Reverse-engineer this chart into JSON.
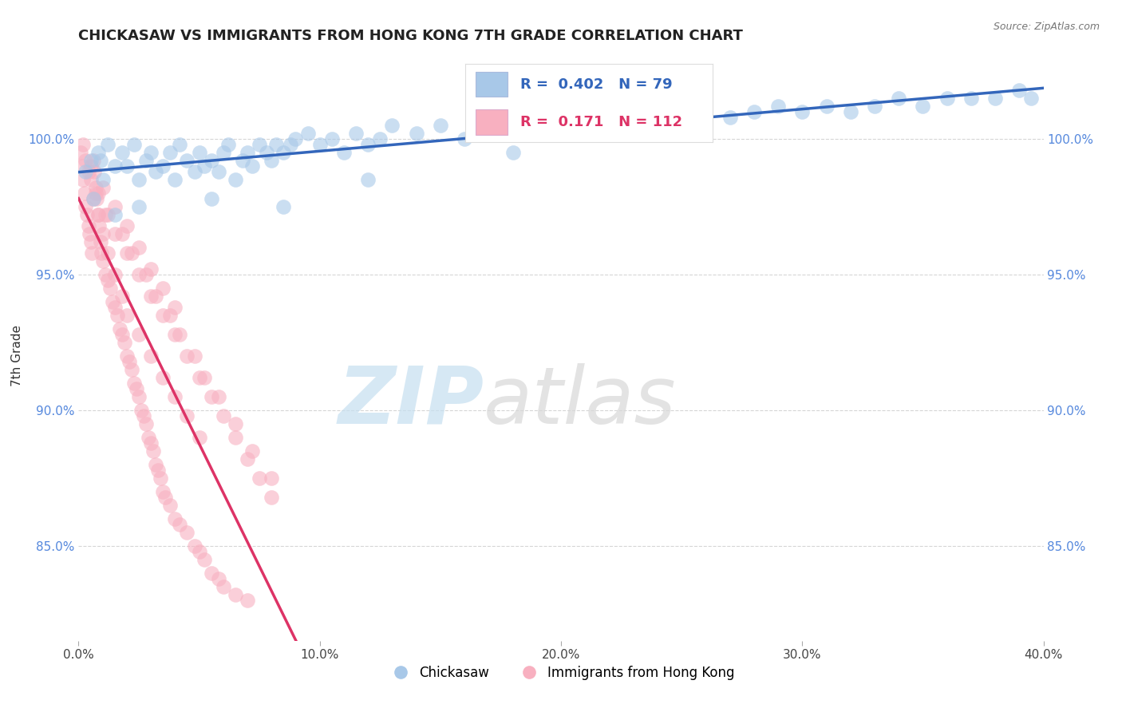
{
  "title": "CHICKASAW VS IMMIGRANTS FROM HONG KONG 7TH GRADE CORRELATION CHART",
  "source_text": "Source: ZipAtlas.com",
  "ylabel": "7th Grade",
  "xlim": [
    0.0,
    40.0
  ],
  "ylim": [
    81.5,
    102.5
  ],
  "yticks": [
    85.0,
    90.0,
    95.0,
    100.0
  ],
  "ytick_labels": [
    "85.0%",
    "90.0%",
    "95.0%",
    "100.0%"
  ],
  "xticks": [
    0.0,
    10.0,
    20.0,
    30.0,
    40.0
  ],
  "xtick_labels": [
    "0.0%",
    "10.0%",
    "20.0%",
    "30.0%",
    "40.0%"
  ],
  "blue_R": 0.402,
  "blue_N": 79,
  "pink_R": 0.171,
  "pink_N": 112,
  "blue_color": "#a8c8e8",
  "blue_line_color": "#3366bb",
  "pink_color": "#f8b0c0",
  "pink_line_color": "#dd3366",
  "watermark_zip": "ZIP",
  "watermark_atlas": "atlas",
  "legend_label_blue": "Chickasaw",
  "legend_label_pink": "Immigrants from Hong Kong",
  "blue_scatter_x": [
    0.3,
    0.5,
    0.8,
    1.0,
    1.2,
    1.5,
    0.6,
    0.9,
    1.8,
    2.0,
    2.3,
    2.5,
    2.8,
    3.0,
    3.2,
    3.5,
    3.8,
    4.0,
    4.2,
    4.5,
    4.8,
    5.0,
    5.2,
    5.5,
    5.8,
    6.0,
    6.2,
    6.5,
    6.8,
    7.0,
    7.2,
    7.5,
    7.8,
    8.0,
    8.2,
    8.5,
    8.8,
    9.0,
    9.5,
    10.0,
    10.5,
    11.0,
    11.5,
    12.0,
    12.5,
    13.0,
    14.0,
    15.0,
    16.0,
    17.0,
    18.0,
    19.0,
    20.0,
    21.0,
    22.0,
    23.0,
    24.0,
    25.0,
    26.0,
    27.0,
    28.0,
    29.0,
    30.0,
    31.0,
    32.0,
    33.0,
    34.0,
    35.0,
    36.0,
    37.0,
    38.0,
    39.0,
    39.5,
    1.5,
    2.5,
    5.5,
    8.5,
    12.0,
    18.0
  ],
  "blue_scatter_y": [
    98.8,
    99.2,
    99.5,
    98.5,
    99.8,
    99.0,
    97.8,
    99.2,
    99.5,
    99.0,
    99.8,
    98.5,
    99.2,
    99.5,
    98.8,
    99.0,
    99.5,
    98.5,
    99.8,
    99.2,
    98.8,
    99.5,
    99.0,
    99.2,
    98.8,
    99.5,
    99.8,
    98.5,
    99.2,
    99.5,
    99.0,
    99.8,
    99.5,
    99.2,
    99.8,
    99.5,
    99.8,
    100.0,
    100.2,
    99.8,
    100.0,
    99.5,
    100.2,
    99.8,
    100.0,
    100.5,
    100.2,
    100.5,
    100.0,
    100.5,
    100.2,
    100.5,
    100.8,
    100.5,
    100.8,
    100.5,
    101.0,
    100.8,
    101.0,
    100.8,
    101.0,
    101.2,
    101.0,
    101.2,
    101.0,
    101.2,
    101.5,
    101.2,
    101.5,
    101.5,
    101.5,
    101.8,
    101.5,
    97.2,
    97.5,
    97.8,
    97.5,
    98.5,
    99.5
  ],
  "pink_scatter_x": [
    0.1,
    0.15,
    0.2,
    0.25,
    0.3,
    0.35,
    0.4,
    0.45,
    0.5,
    0.55,
    0.6,
    0.65,
    0.7,
    0.75,
    0.8,
    0.85,
    0.9,
    0.95,
    1.0,
    1.1,
    1.2,
    1.3,
    1.4,
    1.5,
    1.6,
    1.7,
    1.8,
    1.9,
    2.0,
    2.1,
    2.2,
    2.3,
    2.4,
    2.5,
    2.6,
    2.7,
    2.8,
    2.9,
    3.0,
    3.1,
    3.2,
    3.3,
    3.4,
    3.5,
    3.6,
    3.8,
    4.0,
    4.2,
    4.5,
    4.8,
    5.0,
    5.2,
    5.5,
    5.8,
    6.0,
    6.5,
    7.0,
    0.2,
    0.3,
    0.5,
    0.6,
    0.8,
    1.0,
    1.2,
    1.5,
    1.8,
    2.0,
    2.5,
    3.0,
    3.5,
    4.0,
    4.5,
    5.0,
    0.4,
    0.7,
    1.1,
    1.5,
    2.0,
    2.5,
    3.0,
    3.5,
    4.0,
    4.5,
    5.0,
    5.5,
    6.0,
    6.5,
    7.0,
    7.5,
    8.0,
    0.5,
    1.0,
    1.5,
    2.0,
    2.5,
    3.0,
    3.5,
    4.0,
    0.8,
    1.2,
    1.8,
    2.2,
    2.8,
    3.2,
    3.8,
    4.2,
    4.8,
    5.2,
    5.8,
    6.5,
    7.2,
    8.0
  ],
  "pink_scatter_y": [
    99.5,
    99.0,
    98.5,
    98.0,
    97.5,
    97.2,
    96.8,
    96.5,
    96.2,
    95.8,
    99.2,
    98.8,
    98.2,
    97.8,
    97.2,
    96.8,
    96.2,
    95.8,
    95.5,
    95.0,
    94.8,
    94.5,
    94.0,
    93.8,
    93.5,
    93.0,
    92.8,
    92.5,
    92.0,
    91.8,
    91.5,
    91.0,
    90.8,
    90.5,
    90.0,
    89.8,
    89.5,
    89.0,
    88.8,
    88.5,
    88.0,
    87.8,
    87.5,
    87.0,
    86.8,
    86.5,
    86.0,
    85.8,
    85.5,
    85.0,
    84.8,
    84.5,
    84.0,
    83.8,
    83.5,
    83.2,
    83.0,
    99.8,
    99.2,
    98.5,
    97.8,
    97.2,
    96.5,
    95.8,
    95.0,
    94.2,
    93.5,
    92.8,
    92.0,
    91.2,
    90.5,
    89.8,
    89.0,
    98.8,
    98.0,
    97.2,
    96.5,
    95.8,
    95.0,
    94.2,
    93.5,
    92.8,
    92.0,
    91.2,
    90.5,
    89.8,
    89.0,
    88.2,
    87.5,
    86.8,
    99.0,
    98.2,
    97.5,
    96.8,
    96.0,
    95.2,
    94.5,
    93.8,
    98.0,
    97.2,
    96.5,
    95.8,
    95.0,
    94.2,
    93.5,
    92.8,
    92.0,
    91.2,
    90.5,
    89.5,
    88.5,
    87.5
  ]
}
